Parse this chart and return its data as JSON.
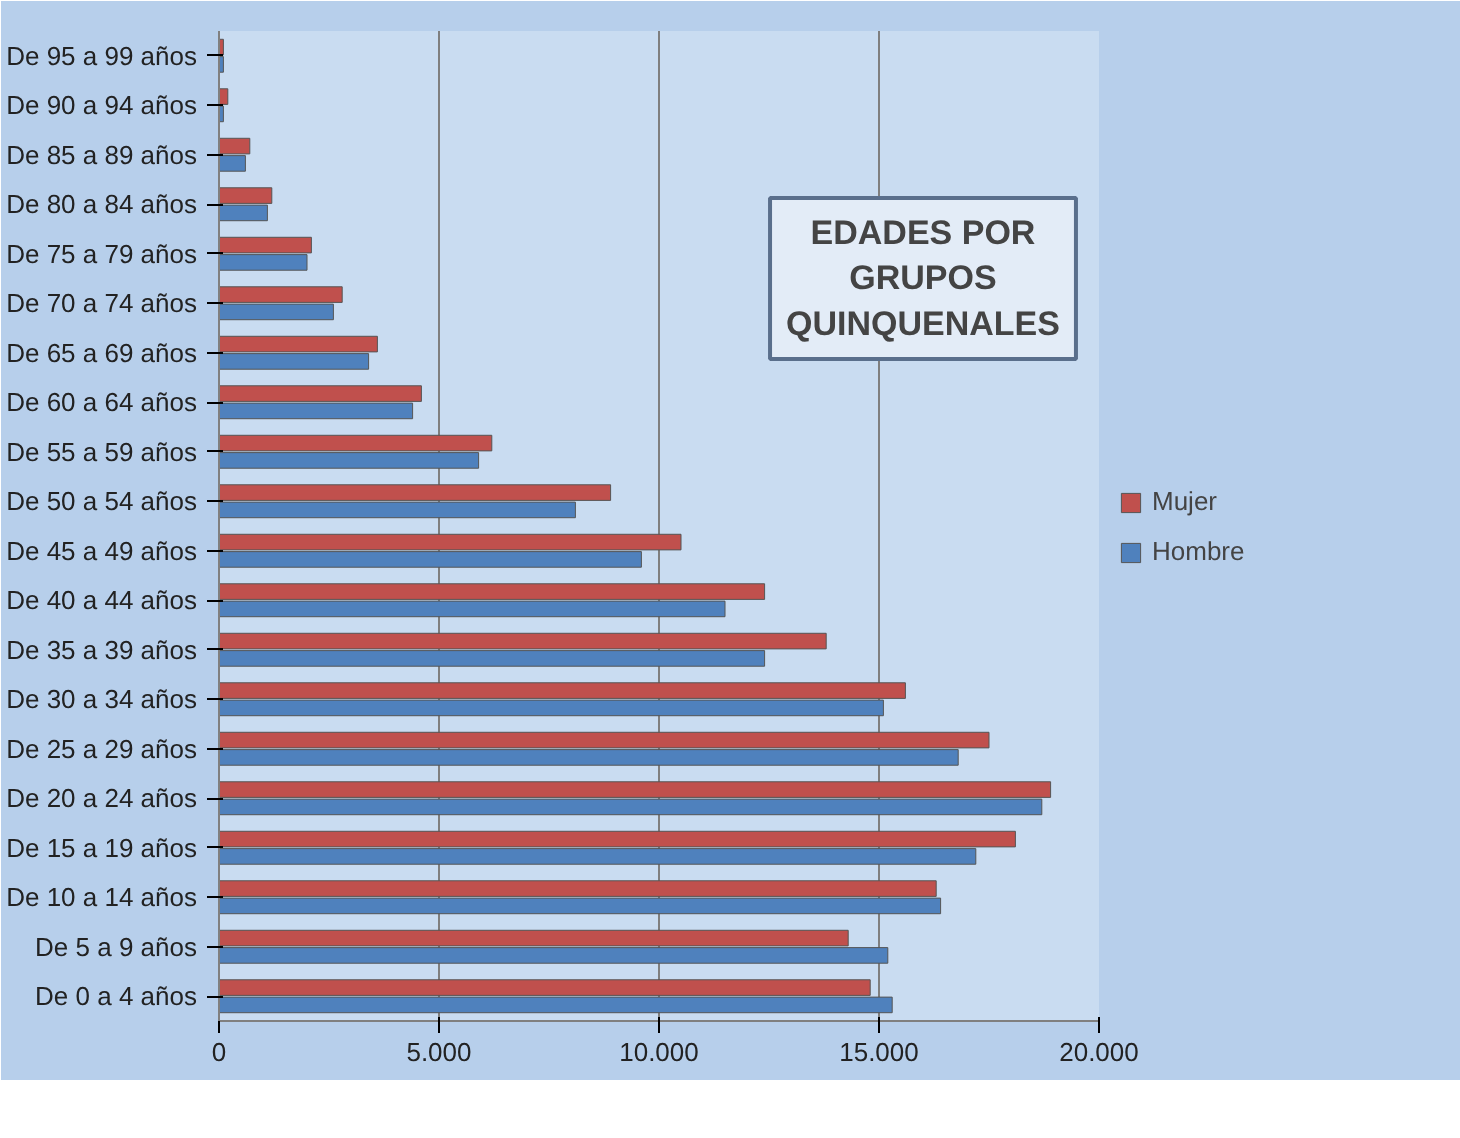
{
  "chart_data": {
    "type": "bar",
    "orientation": "horizontal",
    "title": "EDADES POR GRUPOS QUINQUENALES",
    "categories": [
      "De 95 a 99 años",
      "De 90 a 94 años",
      "De 85 a 89 años",
      "De 80 a 84 años",
      "De 75 a 79 años",
      "De 70 a 74 años",
      "De 65 a 69 años",
      "De 60 a 64 años",
      "De 55 a 59 años",
      "De 50 a 54 años",
      "De 45 a 49 años",
      "De 40 a 44 años",
      "De 35 a 39 años",
      "De 30 a 34 años",
      "De 25 a 29 años",
      "De 20 a 24 años",
      "De 15 a 19 años",
      "De 10 a 14 años",
      "De 5 a 9 años",
      "De 0 a 4 años"
    ],
    "series": [
      {
        "name": "Mujer",
        "color": "#c0504d",
        "values": [
          100,
          200,
          700,
          1200,
          2100,
          2800,
          3600,
          4600,
          6200,
          8900,
          10500,
          12400,
          13800,
          15600,
          17500,
          18900,
          18100,
          16300,
          14300,
          14800
        ]
      },
      {
        "name": "Hombre",
        "color": "#4f81bd",
        "values": [
          100,
          100,
          600,
          1100,
          2000,
          2600,
          3400,
          4400,
          5900,
          8100,
          9600,
          11500,
          12400,
          15100,
          16800,
          18700,
          17200,
          16400,
          15200,
          15300
        ]
      }
    ],
    "xlim": [
      0,
      20000
    ],
    "xticks": [
      0,
      {
        "value": 5000,
        "label": "5.000"
      },
      {
        "value": 10000,
        "label": "10.000"
      },
      {
        "value": 15000,
        "label": "15.000"
      },
      {
        "value": 20000,
        "label": "20.000"
      }
    ],
    "grid": "x",
    "legend": "right"
  }
}
